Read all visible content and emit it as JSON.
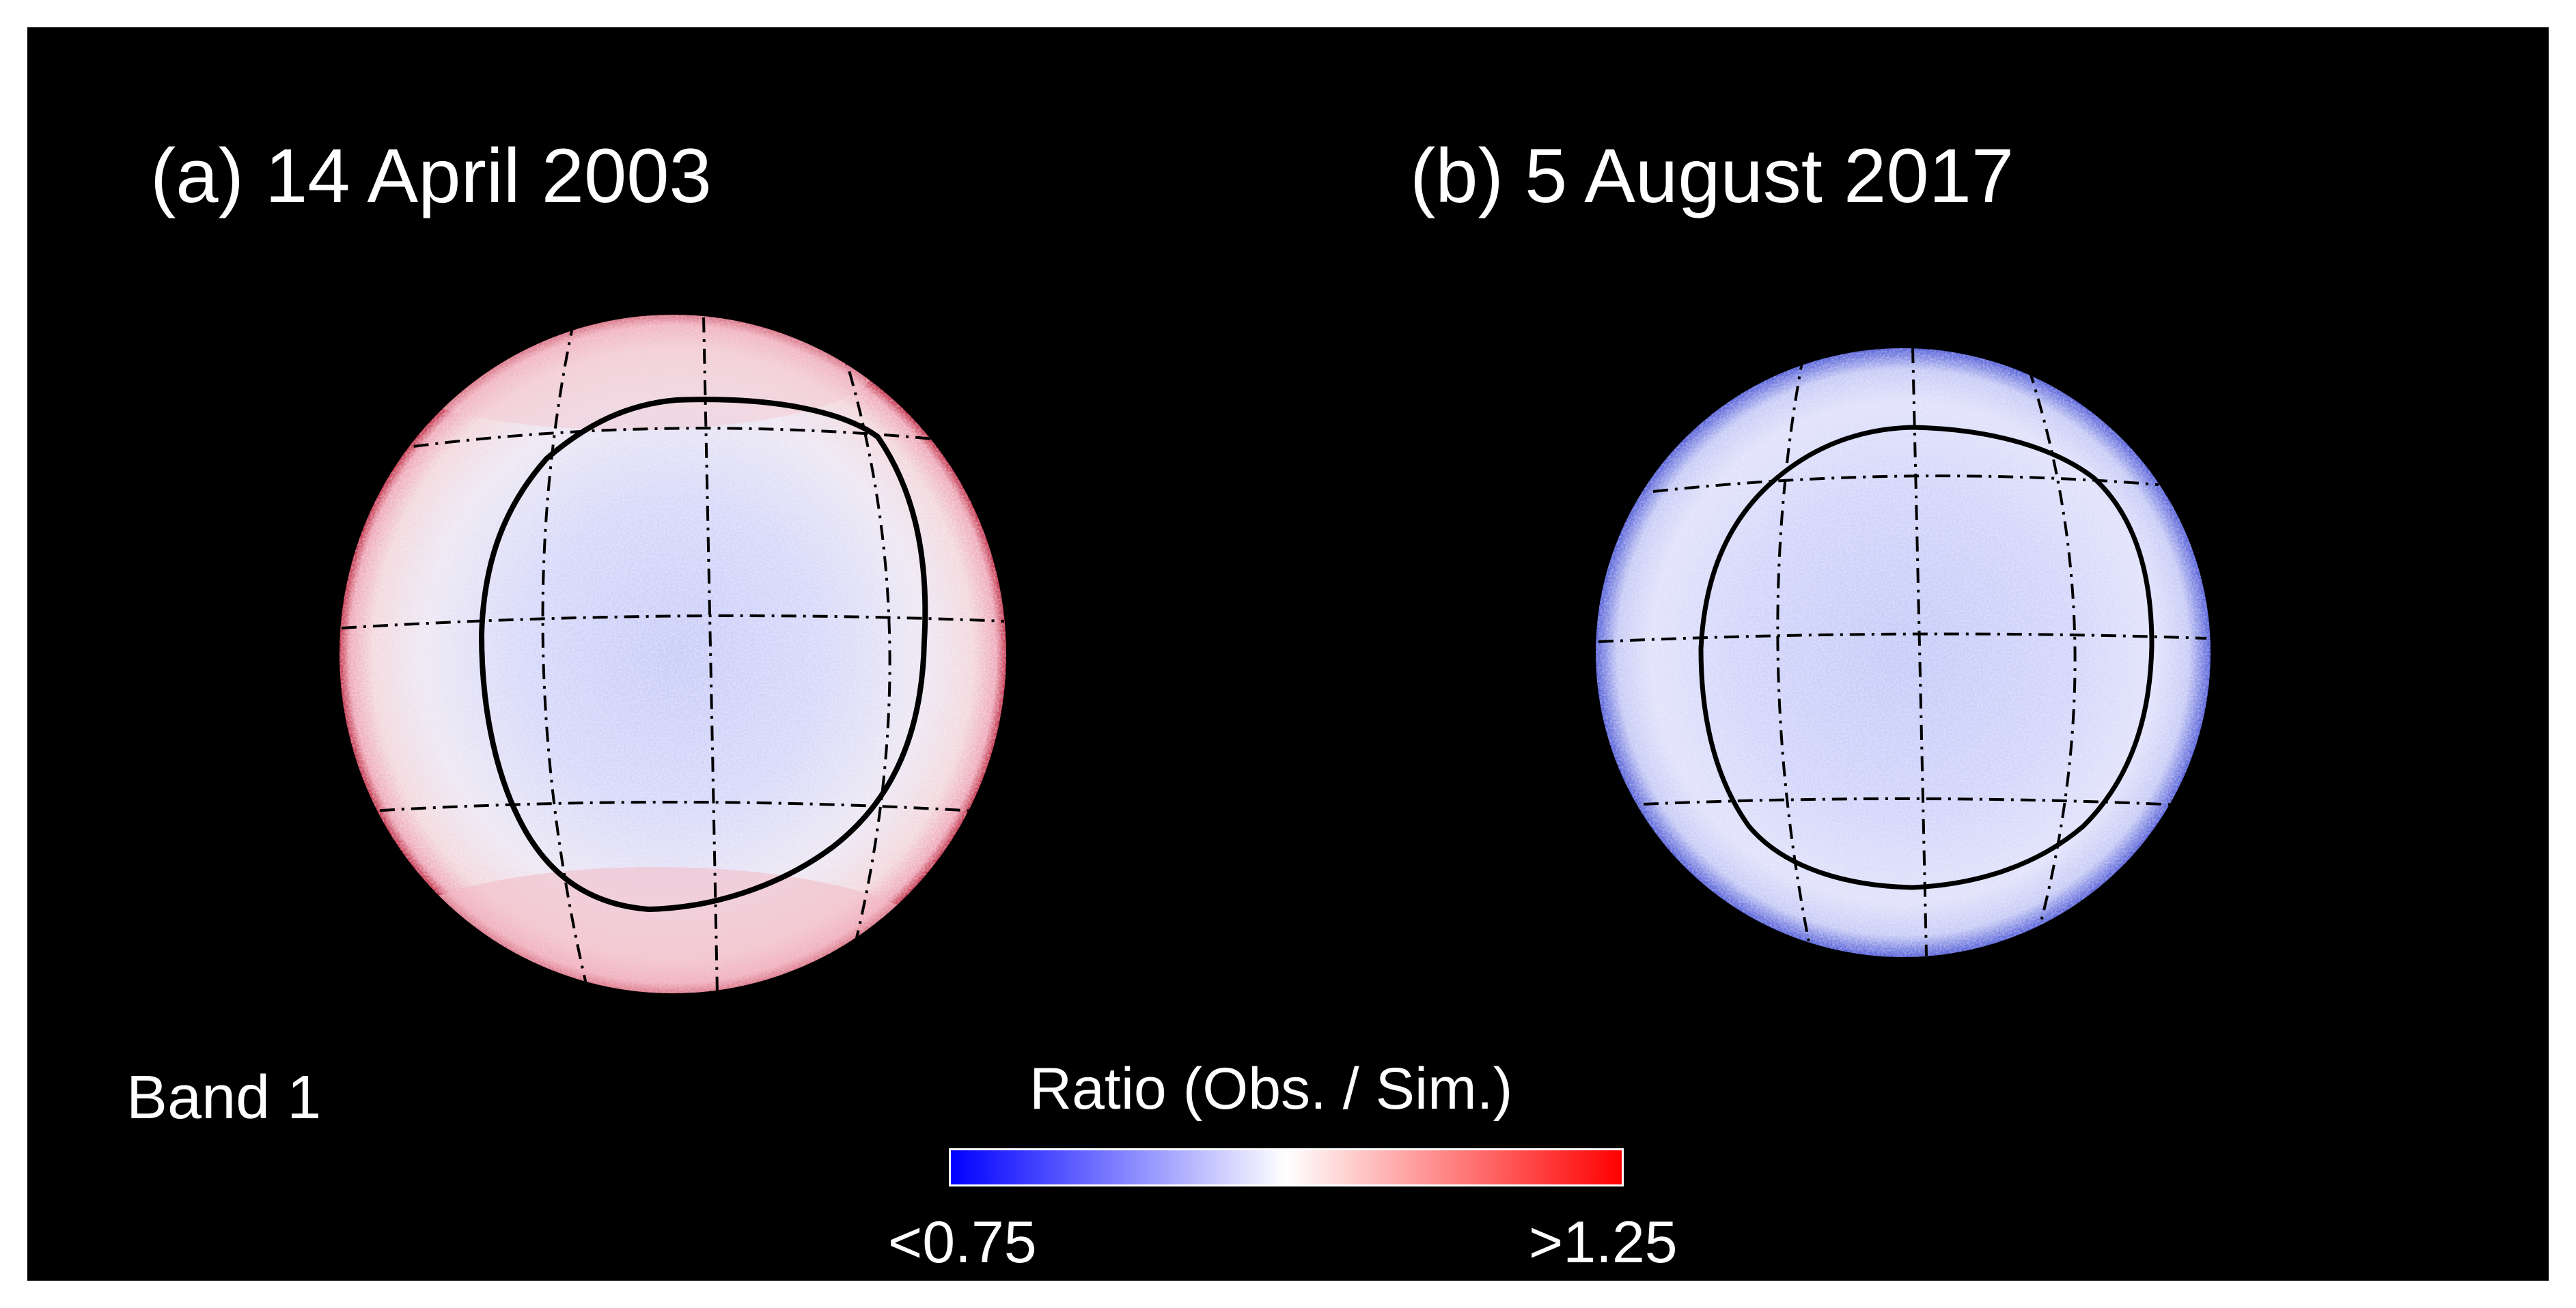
{
  "panels": [
    {
      "id": "a",
      "title": "(a) 14 April 2003"
    },
    {
      "id": "b",
      "title": "(b) 5 August 2017"
    }
  ],
  "band_label": "Band 1",
  "colorbar": {
    "title": "Ratio (Obs. / Sim.)",
    "min_label": "<0.75",
    "max_label": ">1.25",
    "color_low": "#0000ff",
    "color_mid": "#ffffff",
    "color_high": "#ff0000"
  },
  "colors": {
    "background": "#000000",
    "text": "#ffffff",
    "grid_lines": "#000000"
  }
}
